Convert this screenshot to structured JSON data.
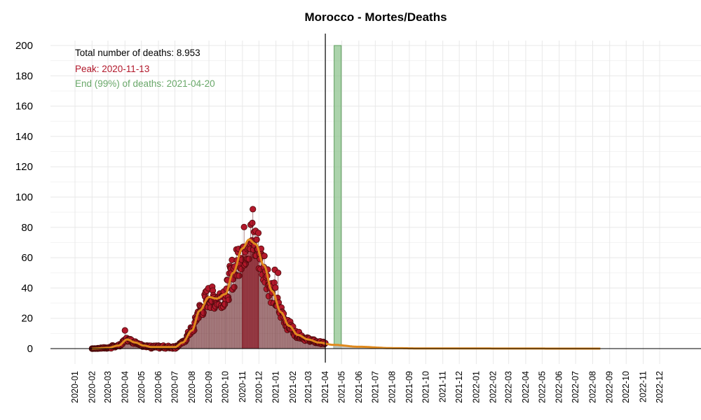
{
  "chart_data": {
    "type": "scatter",
    "title": "Morocco - Mortes/Deaths",
    "xlabel": "",
    "ylabel": "",
    "ylim": [
      0,
      200
    ],
    "yticks": [
      0,
      20,
      40,
      60,
      80,
      100,
      120,
      140,
      160,
      180,
      200
    ],
    "xlim": [
      "2019-12-15",
      "2023-02-15"
    ],
    "xticks": [
      "2020-01",
      "2020-02",
      "2020-03",
      "2020-04",
      "2020-05",
      "2020-06",
      "2020-07",
      "2020-08",
      "2020-09",
      "2020-10",
      "2020-11",
      "2020-12",
      "2021-01",
      "2021-02",
      "2021-03",
      "2021-04",
      "2021-05",
      "2021-06",
      "2021-07",
      "2021-08",
      "2021-09",
      "2021-10",
      "2021-11",
      "2021-12",
      "2022-01",
      "2022-02",
      "2022-03",
      "2022-04",
      "2022-05",
      "2022-06",
      "2022-07",
      "2022-08",
      "2022-09",
      "2022-10",
      "2022-11",
      "2022-12"
    ],
    "grid": true,
    "current_date": "2021-04-01",
    "annotations": {
      "total": "Total number of deaths: 8.953",
      "peak": "Peak: 2020-11-13",
      "end": "End (99%) of deaths: 2021-04-20"
    },
    "peak_band": {
      "start": "2020-11-01",
      "end": "2020-11-30",
      "value": 66
    },
    "end_band": {
      "start": "2021-04-17",
      "end": "2021-04-30",
      "value": 200
    },
    "forecast_tail": [
      {
        "x": "2021-04-15",
        "y": 2.5
      },
      {
        "x": "2021-05-01",
        "y": 2.0
      },
      {
        "x": "2021-05-15",
        "y": 1.6
      },
      {
        "x": "2021-06-01",
        "y": 1.2
      },
      {
        "x": "2021-06-15",
        "y": 0.9
      },
      {
        "x": "2021-07-01",
        "y": 0.6
      },
      {
        "x": "2021-08-01",
        "y": 0.3
      },
      {
        "x": "2021-09-01",
        "y": 0.1
      },
      {
        "x": "2021-10-15",
        "y": 0
      }
    ],
    "smooth": [
      {
        "x": "2020-02-01",
        "y": 0
      },
      {
        "x": "2020-03-01",
        "y": 0.5
      },
      {
        "x": "2020-03-20",
        "y": 2
      },
      {
        "x": "2020-04-05",
        "y": 6
      },
      {
        "x": "2020-04-20",
        "y": 4
      },
      {
        "x": "2020-05-05",
        "y": 2
      },
      {
        "x": "2020-05-20",
        "y": 1
      },
      {
        "x": "2020-06-10",
        "y": 1
      },
      {
        "x": "2020-07-01",
        "y": 1
      },
      {
        "x": "2020-07-15",
        "y": 4
      },
      {
        "x": "2020-08-01",
        "y": 12
      },
      {
        "x": "2020-08-15",
        "y": 25
      },
      {
        "x": "2020-09-01",
        "y": 34
      },
      {
        "x": "2020-09-15",
        "y": 33
      },
      {
        "x": "2020-10-01",
        "y": 36
      },
      {
        "x": "2020-10-15",
        "y": 50
      },
      {
        "x": "2020-11-01",
        "y": 66
      },
      {
        "x": "2020-11-13",
        "y": 72
      },
      {
        "x": "2020-11-25",
        "y": 69
      },
      {
        "x": "2020-12-10",
        "y": 55
      },
      {
        "x": "2020-12-25",
        "y": 38
      },
      {
        "x": "2021-01-10",
        "y": 24
      },
      {
        "x": "2021-01-25",
        "y": 15
      },
      {
        "x": "2021-02-10",
        "y": 9
      },
      {
        "x": "2021-03-01",
        "y": 6
      },
      {
        "x": "2021-03-20",
        "y": 4
      },
      {
        "x": "2021-04-15",
        "y": 2.5
      },
      {
        "x": "2021-06-01",
        "y": 1.2
      },
      {
        "x": "2021-08-01",
        "y": 0.3
      },
      {
        "x": "2021-10-01",
        "y": 0.1
      },
      {
        "x": "2022-08-15",
        "y": 0
      }
    ],
    "colors": {
      "points": "#b2182b",
      "points_stroke": "#4a0a0a",
      "smooth": "#e08a1e",
      "peak_band": "#d9596a",
      "end_band": "#8fc48f",
      "tail": "#bfbfbf",
      "grid": "#e8e8e8",
      "annotation_total": "#000000",
      "annotation_peak": "#b2182b",
      "annotation_end": "#6aa86a"
    }
  }
}
